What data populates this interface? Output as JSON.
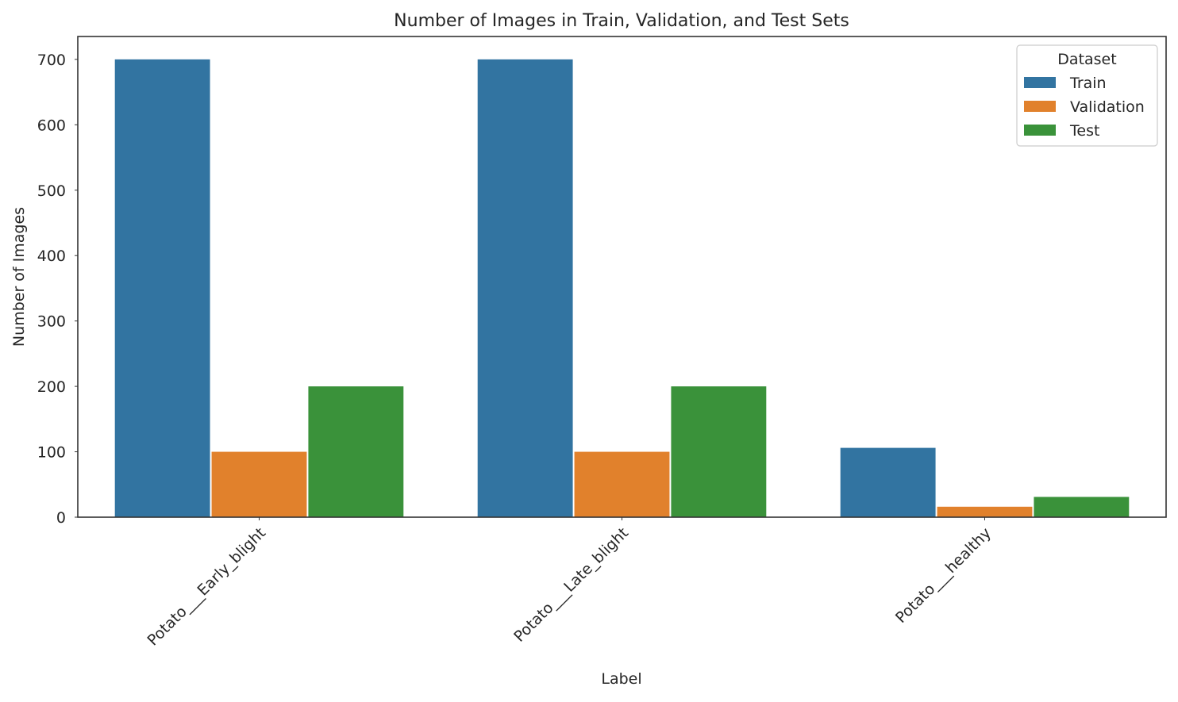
{
  "chart_data": {
    "type": "bar",
    "title": "Number of Images in Train, Validation, and Test Sets",
    "xlabel": "Label",
    "ylabel": "Number of Images",
    "categories": [
      "Potato___Early_blight",
      "Potato___Late_blight",
      "Potato___healthy"
    ],
    "series": [
      {
        "name": "Train",
        "values": [
          700,
          700,
          106
        ],
        "color": "#3274a1"
      },
      {
        "name": "Validation",
        "values": [
          100,
          100,
          16
        ],
        "color": "#e1812c"
      },
      {
        "name": "Test",
        "values": [
          200,
          200,
          31
        ],
        "color": "#3a923a"
      }
    ],
    "ylim": [
      0,
      735
    ],
    "yticks": [
      0,
      100,
      200,
      300,
      400,
      500,
      600,
      700
    ],
    "grid": false,
    "legend": {
      "title": "Dataset",
      "position": "top-right"
    }
  }
}
